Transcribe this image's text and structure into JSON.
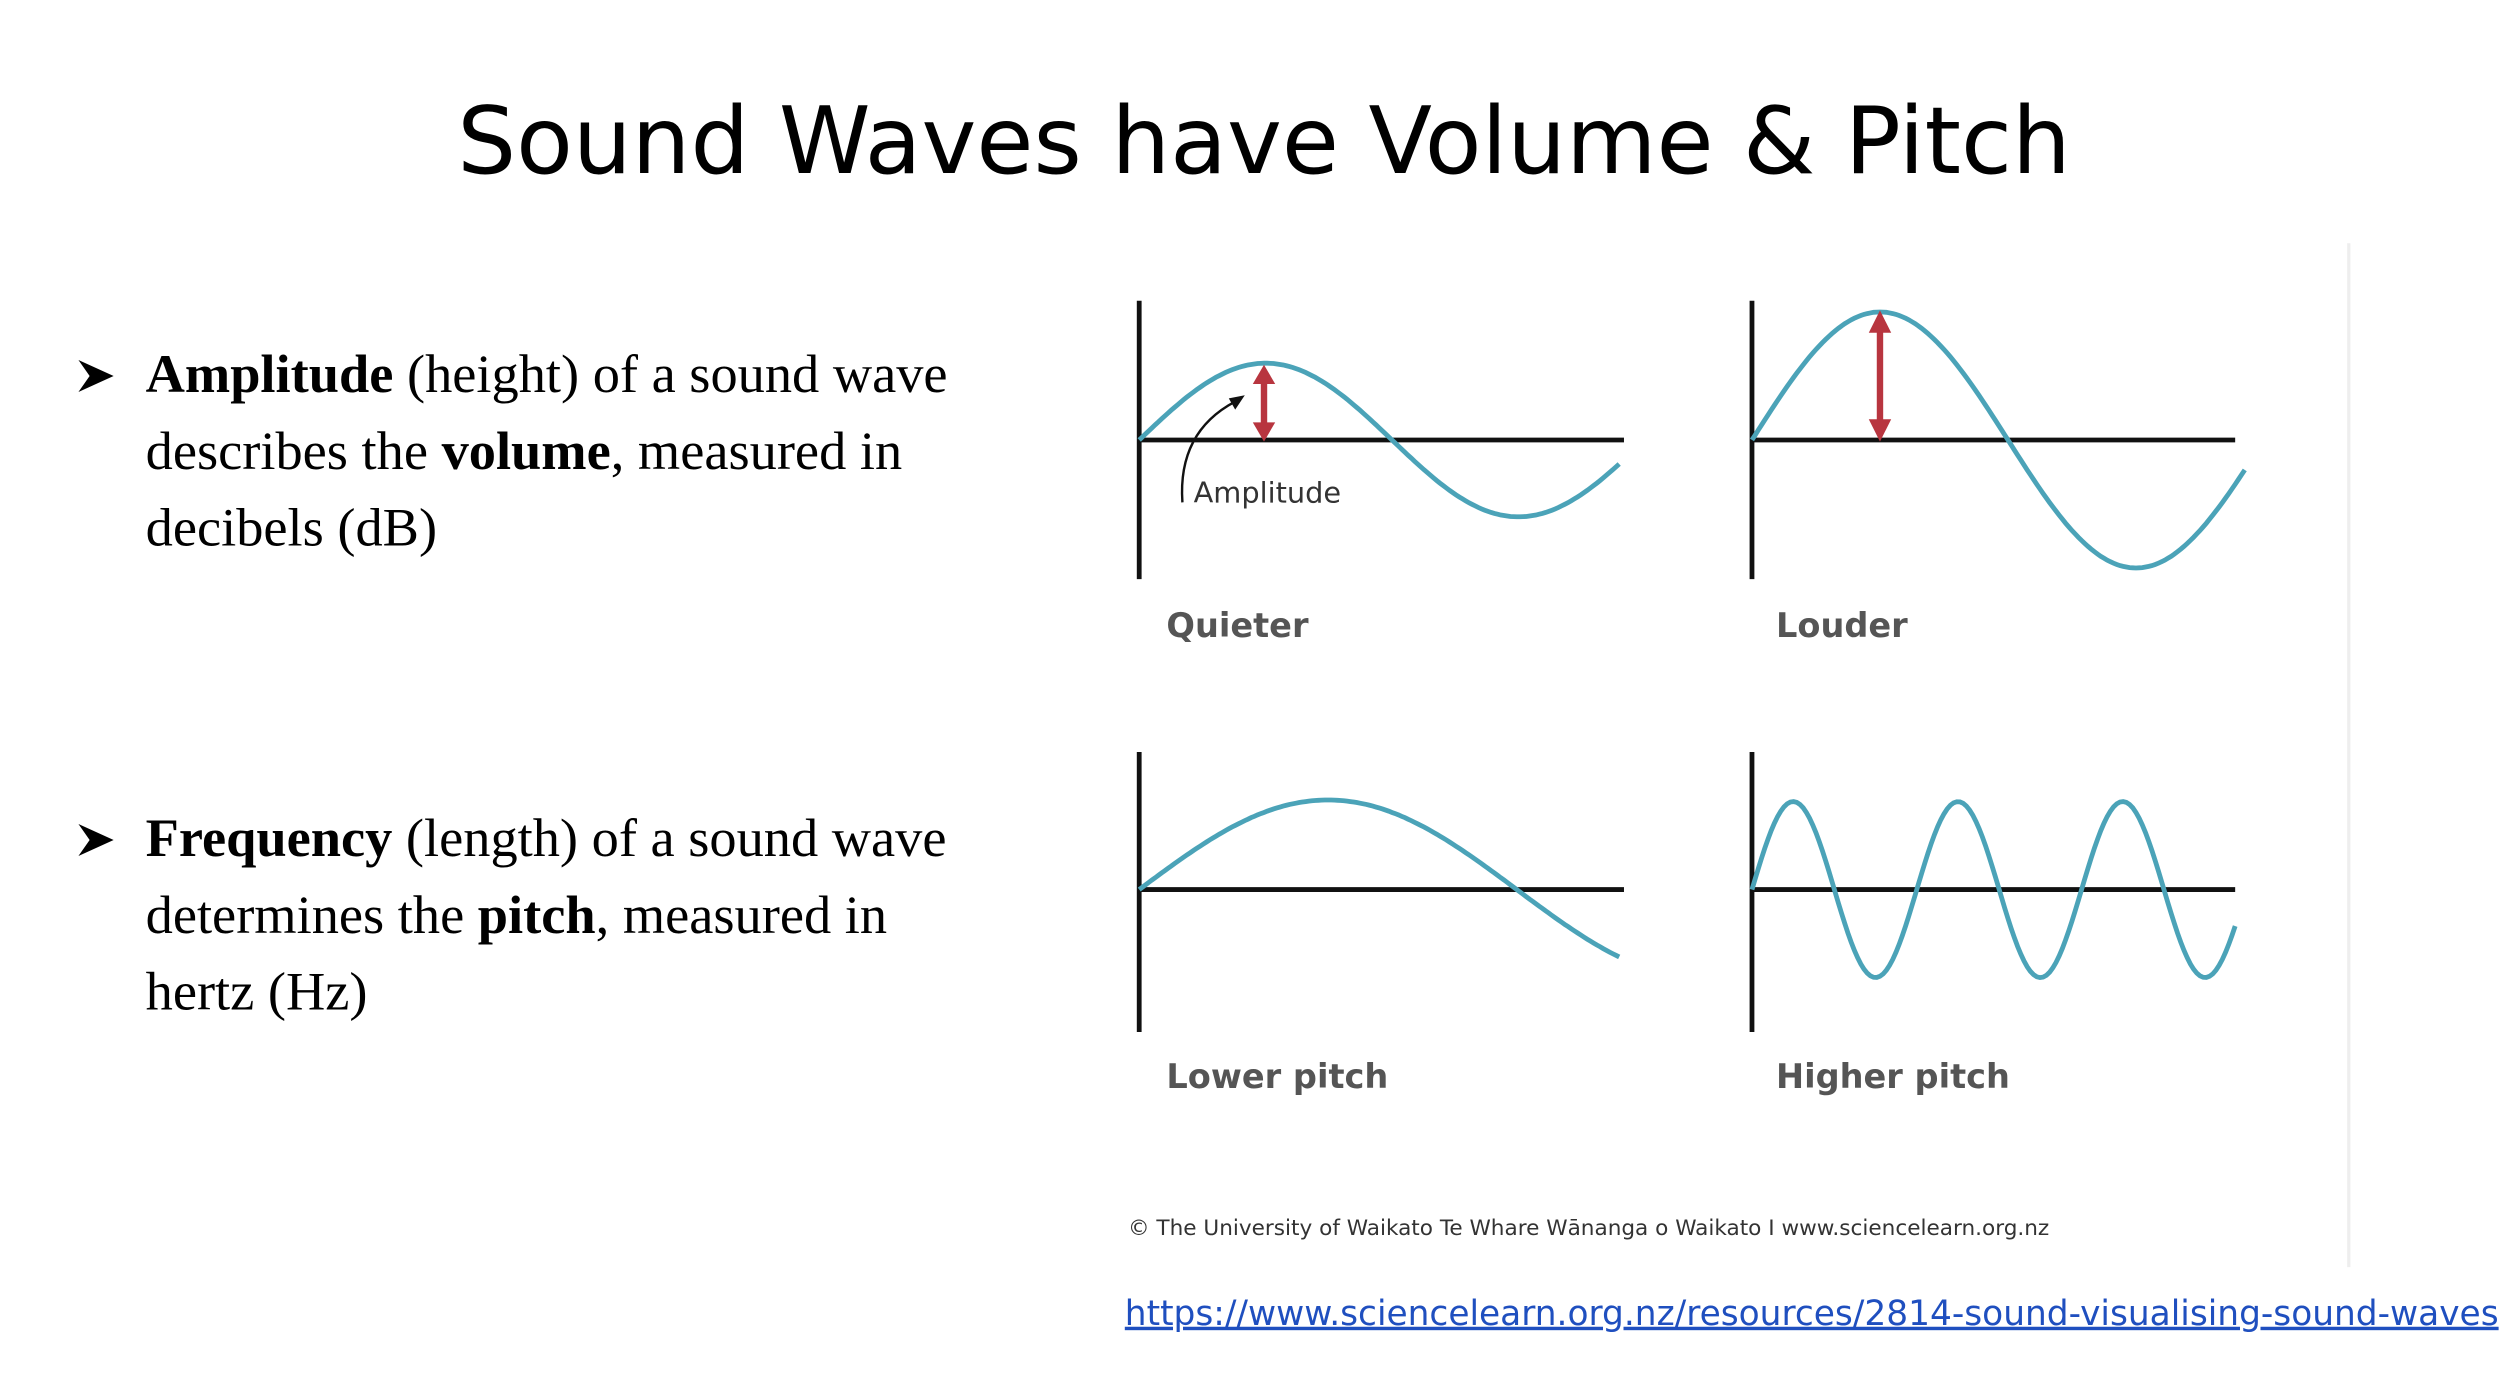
{
  "title": "Sound Waves have Volume & Pitch",
  "bullets": [
    {
      "lines": [
        [
          {
            "text": "Amplitude",
            "bold": true
          },
          {
            "text": " (height) of a sound wave"
          }
        ],
        [
          {
            "text": "describes the "
          },
          {
            "text": "volume",
            "bold": true
          },
          {
            "text": ", measured in"
          }
        ],
        [
          {
            "text": "decibels (dB)"
          }
        ]
      ]
    },
    {
      "lines": [
        [
          {
            "text": "Frequency",
            "bold": true
          },
          {
            "text": " (length) of a sound wave"
          }
        ],
        [
          {
            "text": "determines the "
          },
          {
            "text": "pitch",
            "bold": true
          },
          {
            "text": ", measured in"
          }
        ],
        [
          {
            "text": "hertz (Hz)"
          }
        ]
      ]
    }
  ],
  "figure": {
    "amplitude_label": "Amplitude",
    "panels": [
      "Quieter",
      "Louder",
      "Lower pitch",
      "Higher pitch"
    ],
    "credit": "© The University of Waikato Te Whare Wānanga o Waikato I www.sciencelearn.org.nz"
  },
  "link": "https://www.sciencelearn.org.nz/resources/2814-sound-visualising-sound-waves"
}
